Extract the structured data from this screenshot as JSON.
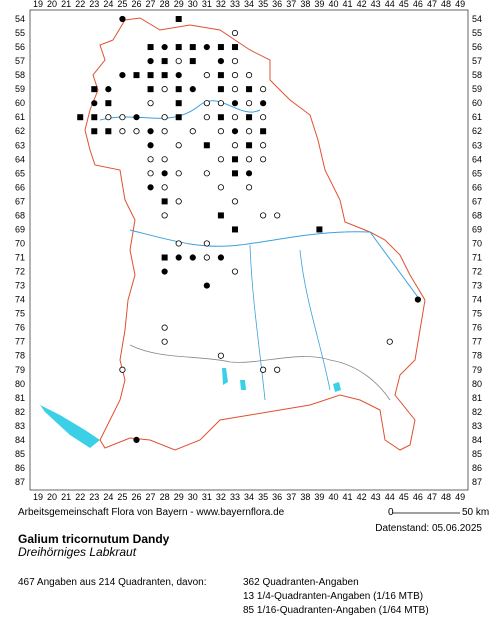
{
  "grid": {
    "columns": [
      19,
      20,
      21,
      22,
      23,
      24,
      25,
      26,
      27,
      28,
      29,
      30,
      31,
      32,
      33,
      34,
      35,
      36,
      37,
      38,
      39,
      40,
      41,
      42,
      43,
      44,
      45,
      46,
      47,
      48,
      49
    ],
    "rows": [
      54,
      55,
      56,
      57,
      58,
      59,
      60,
      61,
      62,
      63,
      64,
      65,
      66,
      67,
      68,
      69,
      70,
      71,
      72,
      73,
      74,
      75,
      76,
      77,
      78,
      79,
      80,
      81,
      82,
      83,
      84,
      85,
      86,
      87
    ]
  },
  "footer": {
    "credit": "Arbeitsgemeinschaft Flora von Bayern - www.bayernflora.de",
    "scale_start": "0",
    "scale_end": "50 km",
    "date": "Datenstand: 05.06.2025"
  },
  "species": {
    "name": "Galium tricornutum Dandy",
    "common_name": "Dreihörniges Labkraut"
  },
  "stats": {
    "summary": "467 Angaben aus 214 Quadranten, davon:",
    "lines": [
      "362 Quadranten-Angaben",
      "13 1/4-Quadranten-Angaben (1/16 MTB)",
      "85 1/16-Quadranten-Angaben (1/64 MTB)"
    ]
  }
}
